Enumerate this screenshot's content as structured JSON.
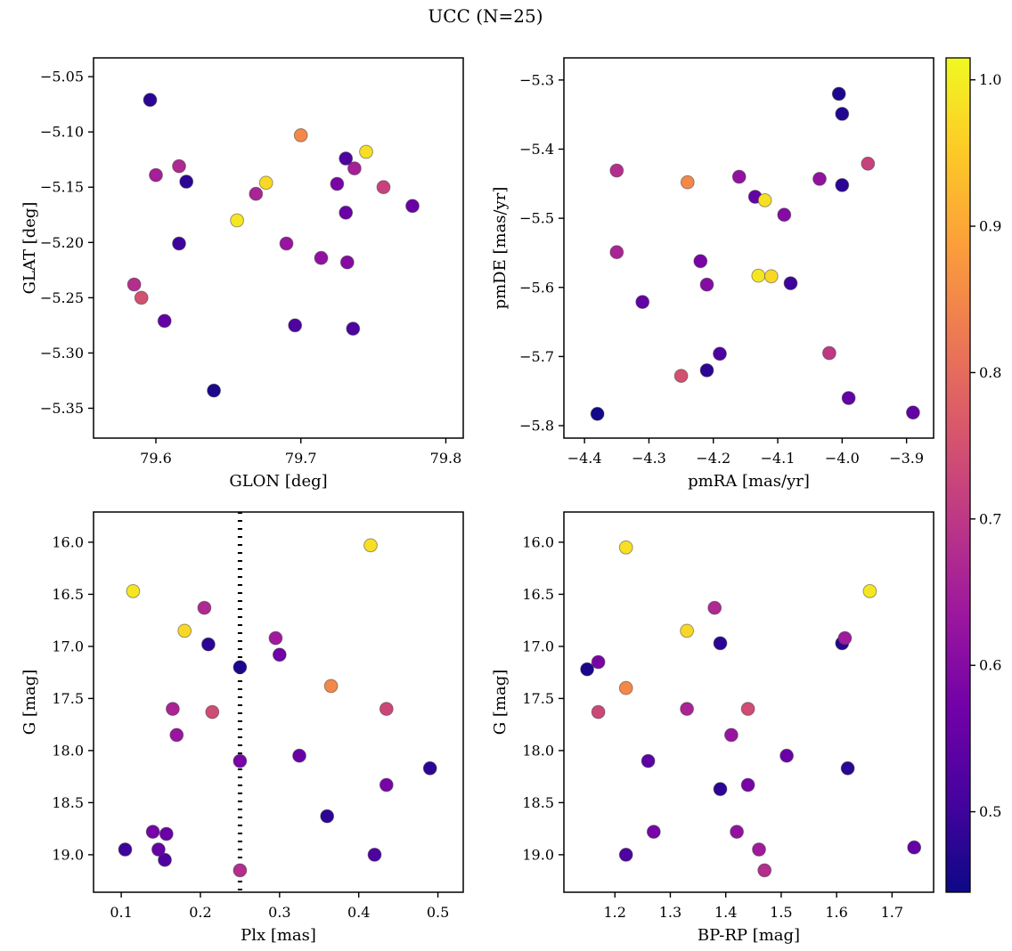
{
  "title": "UCC (N=25)",
  "colors": {
    "background": "#ffffff",
    "axis": "#000000",
    "vline": "#000000",
    "marker_edge": "#3a3a3a"
  },
  "colormap": {
    "name": "plasma",
    "stops": [
      "#0d0887",
      "#46039f",
      "#7201a8",
      "#9c179e",
      "#bd3786",
      "#d8576b",
      "#ed7953",
      "#fb9f3a",
      "#fdca26",
      "#f0f921"
    ],
    "vmin": 0.445,
    "vmax": 1.015
  },
  "colorbar": {
    "ticks": [
      0.5,
      0.6,
      0.7,
      0.8,
      0.9,
      1.0
    ],
    "tick_decimals": 1
  },
  "chart_data": [
    {
      "type": "scatter",
      "xlabel": "GLON [deg]",
      "ylabel": "GLAT [deg]",
      "xrange": [
        79.557,
        79.812
      ],
      "yrange": [
        -5.377,
        -5.033
      ],
      "xticks": [
        79.6,
        79.7,
        79.8
      ],
      "yticks": [
        -5.05,
        -5.1,
        -5.15,
        -5.2,
        -5.25,
        -5.3,
        -5.35
      ],
      "xtick_decimals": 1,
      "ytick_decimals": 2,
      "points": [
        [
          79.596,
          -5.071,
          0.48
        ],
        [
          79.6,
          -5.139,
          0.65
        ],
        [
          79.616,
          -5.131,
          0.67
        ],
        [
          79.621,
          -5.145,
          0.48
        ],
        [
          79.616,
          -5.201,
          0.5
        ],
        [
          79.585,
          -5.238,
          0.68
        ],
        [
          79.59,
          -5.25,
          0.75
        ],
        [
          79.606,
          -5.271,
          0.55
        ],
        [
          79.64,
          -5.334,
          0.46
        ],
        [
          79.656,
          -5.18,
          0.99
        ],
        [
          79.676,
          -5.146,
          0.97
        ],
        [
          79.669,
          -5.156,
          0.66
        ],
        [
          79.7,
          -5.103,
          0.85
        ],
        [
          79.69,
          -5.201,
          0.63
        ],
        [
          79.696,
          -5.275,
          0.52
        ],
        [
          79.714,
          -5.214,
          0.62
        ],
        [
          79.725,
          -5.147,
          0.58
        ],
        [
          79.731,
          -5.124,
          0.52
        ],
        [
          79.737,
          -5.133,
          0.65
        ],
        [
          79.745,
          -5.118,
          0.98
        ],
        [
          79.731,
          -5.173,
          0.56
        ],
        [
          79.732,
          -5.218,
          0.6
        ],
        [
          79.736,
          -5.278,
          0.52
        ],
        [
          79.757,
          -5.15,
          0.72
        ],
        [
          79.777,
          -5.167,
          0.56
        ]
      ]
    },
    {
      "type": "scatter",
      "xlabel": "pmRA [mas/yr]",
      "ylabel": "pmDE [mas/yr]",
      "xrange": [
        -4.432,
        -3.858
      ],
      "yrange": [
        -5.818,
        -5.268
      ],
      "xticks": [
        -4.4,
        -4.3,
        -4.2,
        -4.1,
        -4.0,
        -3.9
      ],
      "yticks": [
        -5.3,
        -5.4,
        -5.5,
        -5.6,
        -5.7,
        -5.8
      ],
      "xtick_decimals": 1,
      "ytick_decimals": 1,
      "points": [
        [
          -4.38,
          -5.783,
          0.45
        ],
        [
          -4.35,
          -5.431,
          0.68
        ],
        [
          -4.35,
          -5.549,
          0.66
        ],
        [
          -4.31,
          -5.621,
          0.55
        ],
        [
          -4.25,
          -5.728,
          0.75
        ],
        [
          -4.24,
          -5.448,
          0.85
        ],
        [
          -4.22,
          -5.562,
          0.58
        ],
        [
          -4.21,
          -5.596,
          0.6
        ],
        [
          -4.21,
          -5.72,
          0.48
        ],
        [
          -4.19,
          -5.696,
          0.52
        ],
        [
          -4.16,
          -5.44,
          0.62
        ],
        [
          -4.135,
          -5.469,
          0.55
        ],
        [
          -4.12,
          -5.474,
          0.98
        ],
        [
          -4.13,
          -5.583,
          0.99
        ],
        [
          -4.11,
          -5.584,
          0.97
        ],
        [
          -4.09,
          -5.495,
          0.6
        ],
        [
          -4.08,
          -5.594,
          0.5
        ],
        [
          -4.035,
          -5.443,
          0.62
        ],
        [
          -4.005,
          -5.32,
          0.46
        ],
        [
          -4.0,
          -5.349,
          0.47
        ],
        [
          -4.0,
          -5.452,
          0.48
        ],
        [
          -4.02,
          -5.695,
          0.7
        ],
        [
          -3.99,
          -5.76,
          0.55
        ],
        [
          -3.96,
          -5.421,
          0.72
        ],
        [
          -3.89,
          -5.781,
          0.55
        ]
      ]
    },
    {
      "type": "scatter",
      "xlabel": "Plx [mas]",
      "ylabel": "G [mag]",
      "xrange": [
        0.065,
        0.532
      ],
      "yrange": [
        19.36,
        15.71
      ],
      "xticks": [
        0.1,
        0.2,
        0.3,
        0.4,
        0.5
      ],
      "yticks": [
        16.0,
        16.5,
        17.0,
        17.5,
        18.0,
        18.5,
        19.0
      ],
      "xtick_decimals": 1,
      "ytick_decimals": 1,
      "vline": {
        "x": 0.25,
        "style": "dotted"
      },
      "points": [
        [
          0.105,
          18.95,
          0.5
        ],
        [
          0.115,
          16.47,
          0.99
        ],
        [
          0.14,
          18.78,
          0.58
        ],
        [
          0.157,
          18.8,
          0.56
        ],
        [
          0.155,
          19.05,
          0.52
        ],
        [
          0.165,
          17.6,
          0.66
        ],
        [
          0.17,
          17.85,
          0.63
        ],
        [
          0.18,
          16.85,
          0.97
        ],
        [
          0.205,
          16.63,
          0.67
        ],
        [
          0.21,
          16.98,
          0.48
        ],
        [
          0.215,
          17.63,
          0.74
        ],
        [
          0.25,
          17.2,
          0.46
        ],
        [
          0.25,
          18.1,
          0.58
        ],
        [
          0.25,
          19.15,
          0.68
        ],
        [
          0.295,
          16.92,
          0.64
        ],
        [
          0.3,
          17.08,
          0.57
        ],
        [
          0.325,
          18.05,
          0.56
        ],
        [
          0.36,
          18.63,
          0.48
        ],
        [
          0.365,
          17.38,
          0.85
        ],
        [
          0.415,
          16.03,
          0.98
        ],
        [
          0.42,
          19.0,
          0.52
        ],
        [
          0.435,
          18.33,
          0.58
        ],
        [
          0.435,
          17.6,
          0.73
        ],
        [
          0.49,
          18.17,
          0.48
        ],
        [
          0.147,
          18.95,
          0.55
        ]
      ]
    },
    {
      "type": "scatter",
      "xlabel": "BP-RP [mag]",
      "ylabel": "G [mag]",
      "xrange": [
        1.108,
        1.775
      ],
      "yrange": [
        19.36,
        15.71
      ],
      "xticks": [
        1.2,
        1.3,
        1.4,
        1.5,
        1.6,
        1.7
      ],
      "yticks": [
        16.0,
        16.5,
        17.0,
        17.5,
        18.0,
        18.5,
        19.0
      ],
      "xtick_decimals": 1,
      "ytick_decimals": 1,
      "points": [
        [
          1.15,
          17.22,
          0.46
        ],
        [
          1.17,
          17.15,
          0.58
        ],
        [
          1.17,
          17.63,
          0.73
        ],
        [
          1.22,
          16.05,
          0.98
        ],
        [
          1.22,
          17.4,
          0.85
        ],
        [
          1.22,
          19.0,
          0.52
        ],
        [
          1.26,
          18.1,
          0.54
        ],
        [
          1.27,
          18.78,
          0.58
        ],
        [
          1.33,
          16.85,
          0.97
        ],
        [
          1.33,
          17.6,
          0.66
        ],
        [
          1.38,
          16.63,
          0.67
        ],
        [
          1.39,
          16.97,
          0.48
        ],
        [
          1.39,
          18.37,
          0.48
        ],
        [
          1.41,
          17.85,
          0.63
        ],
        [
          1.42,
          18.78,
          0.62
        ],
        [
          1.44,
          18.33,
          0.58
        ],
        [
          1.44,
          17.6,
          0.74
        ],
        [
          1.46,
          18.95,
          0.64
        ],
        [
          1.47,
          19.15,
          0.68
        ],
        [
          1.51,
          18.05,
          0.56
        ],
        [
          1.61,
          16.97,
          0.47
        ],
        [
          1.615,
          16.92,
          0.64
        ],
        [
          1.62,
          18.17,
          0.48
        ],
        [
          1.66,
          16.47,
          0.99
        ],
        [
          1.74,
          18.93,
          0.55
        ]
      ]
    }
  ]
}
